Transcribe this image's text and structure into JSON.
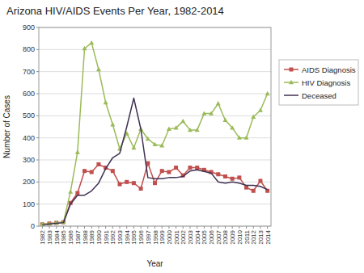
{
  "chart_data": {
    "type": "line",
    "title": "Arizona HIV/AIDS Events Per Year, 1982-2014",
    "x_label": "Year",
    "y_label": "Number of Cases",
    "x": [
      1982,
      1983,
      1984,
      1985,
      1986,
      1987,
      1988,
      1989,
      1990,
      1991,
      1992,
      1993,
      1994,
      1995,
      1996,
      1997,
      1998,
      1999,
      2000,
      2001,
      2002,
      2003,
      2004,
      2005,
      2006,
      2007,
      2008,
      2009,
      2010,
      2011,
      2012,
      2013,
      2014
    ],
    "xlim": [
      1981.5,
      2014.5
    ],
    "xticks": [
      1982,
      1983,
      1984,
      1985,
      1986,
      1987,
      1988,
      1989,
      1990,
      1991,
      1992,
      1993,
      1994,
      1995,
      1996,
      1997,
      1998,
      1999,
      2000,
      2001,
      2002,
      2003,
      2004,
      2005,
      2006,
      2007,
      2008,
      2009,
      2010,
      2011,
      2012,
      2013,
      2014
    ],
    "ylim": [
      0,
      900
    ],
    "yticks": [
      0,
      100,
      200,
      300,
      400,
      500,
      600,
      700,
      800,
      900
    ],
    "grid": "y",
    "legend": "right",
    "series": [
      {
        "name": "AIDS Diagnosis",
        "color": "#C0504D",
        "marker": "square",
        "line_style": "solid",
        "values": [
          8,
          12,
          15,
          18,
          105,
          150,
          250,
          245,
          280,
          265,
          250,
          190,
          200,
          195,
          170,
          285,
          195,
          250,
          245,
          265,
          230,
          265,
          265,
          255,
          245,
          235,
          225,
          215,
          220,
          175,
          160,
          205,
          160
        ]
      },
      {
        "name": "HIV Diagnosis",
        "color": "#9BBB59",
        "marker": "triangle",
        "line_style": "solid",
        "values": [
          8,
          12,
          15,
          18,
          155,
          335,
          805,
          830,
          710,
          560,
          460,
          350,
          420,
          355,
          440,
          395,
          370,
          365,
          440,
          445,
          475,
          435,
          435,
          510,
          510,
          555,
          480,
          445,
          400,
          400,
          495,
          525,
          600
        ]
      },
      {
        "name": "Deceased",
        "color": "#403152",
        "marker": "none",
        "line_style": "solid",
        "values": [
          5,
          10,
          13,
          16,
          100,
          140,
          140,
          160,
          195,
          260,
          310,
          330,
          450,
          580,
          440,
          220,
          215,
          215,
          220,
          220,
          225,
          250,
          255,
          248,
          240,
          200,
          195,
          200,
          195,
          185,
          185,
          180,
          165
        ]
      }
    ]
  }
}
